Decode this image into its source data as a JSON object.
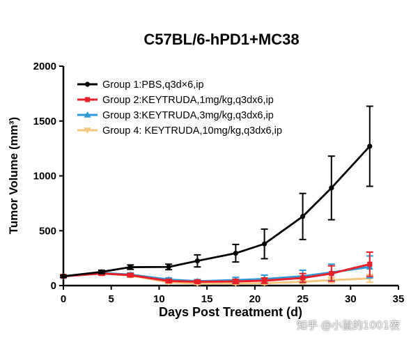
{
  "chart_data": {
    "type": "line",
    "title": "C57BL/6-hPD1+MC38",
    "xlabel": "Days Post Treatment (d)",
    "ylabel": "Tumor Volume (mm³)",
    "xlim": [
      0,
      35
    ],
    "ylim": [
      0,
      2000
    ],
    "x_ticks": [
      0,
      5,
      10,
      15,
      20,
      25,
      30,
      35
    ],
    "y_ticks": [
      0,
      500,
      1000,
      1500,
      2000
    ],
    "grid": false,
    "legend_position": "top-left",
    "x": [
      0,
      4,
      7,
      11,
      14,
      18,
      21,
      25,
      28,
      32
    ],
    "series": [
      {
        "name": "Group 1:PBS,q3d×6,ip",
        "color": "#000000",
        "marker": "circle",
        "values": [
          85,
          125,
          168,
          170,
          225,
          295,
          380,
          630,
          890,
          1270
        ],
        "errors": [
          10,
          15,
          20,
          25,
          55,
          80,
          135,
          210,
          290,
          365
        ]
      },
      {
        "name": "Group 2:KEYTRUDA,1mg/kg,q3dx6,ip",
        "color": "#e8202a",
        "marker": "square",
        "values": [
          85,
          110,
          95,
          42,
          35,
          38,
          45,
          70,
          110,
          195
        ],
        "errors": [
          8,
          15,
          15,
          15,
          12,
          20,
          25,
          40,
          70,
          110
        ]
      },
      {
        "name": "Group 3:KEYTRUDA,3mg/kg,q3dx6,ip",
        "color": "#2c9ad8",
        "marker": "triangle-up",
        "values": [
          85,
          115,
          100,
          55,
          40,
          50,
          60,
          85,
          120,
          170
        ],
        "errors": [
          8,
          15,
          15,
          15,
          15,
          25,
          35,
          55,
          75,
          100
        ]
      },
      {
        "name": "Group 4: KEYTRUDA,10mg/kg,q3dx6,ip",
        "color": "#f5c77e",
        "marker": "triangle-down",
        "values": [
          85,
          112,
          92,
          30,
          18,
          20,
          22,
          35,
          50,
          65
        ],
        "errors": [
          8,
          15,
          15,
          10,
          8,
          10,
          12,
          18,
          25,
          35
        ]
      }
    ]
  },
  "watermark_text": "知乎 @小鼠的1001夜"
}
